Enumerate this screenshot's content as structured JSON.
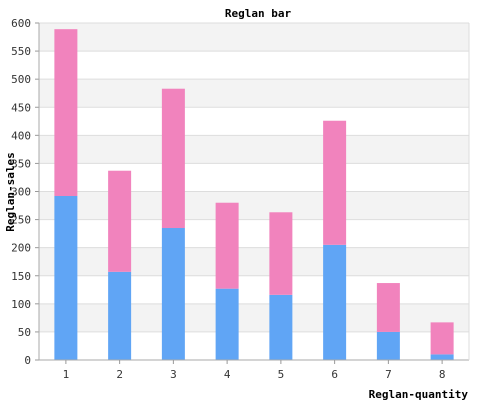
{
  "chart_data": {
    "type": "bar",
    "stacked": true,
    "title": "Reglan bar",
    "xlabel": "Reglan-quantity",
    "ylabel": "Reglan-sales",
    "categories": [
      "1",
      "2",
      "3",
      "4",
      "5",
      "6",
      "7",
      "8"
    ],
    "series": [
      {
        "values": [
          292,
          157,
          235,
          127,
          116,
          205,
          50,
          10
        ],
        "color": "#60a5f5"
      },
      {
        "values": [
          297,
          180,
          248,
          153,
          147,
          221,
          87,
          57
        ],
        "color": "#f183bd"
      }
    ],
    "ylim": [
      0,
      600
    ],
    "yticks": [
      "0",
      "50",
      "100",
      "150",
      "200",
      "250",
      "300",
      "350",
      "400",
      "450",
      "500",
      "550",
      "600"
    ],
    "grid": true,
    "background_bands": [
      "#f3f3f3",
      "#ffffff"
    ]
  }
}
